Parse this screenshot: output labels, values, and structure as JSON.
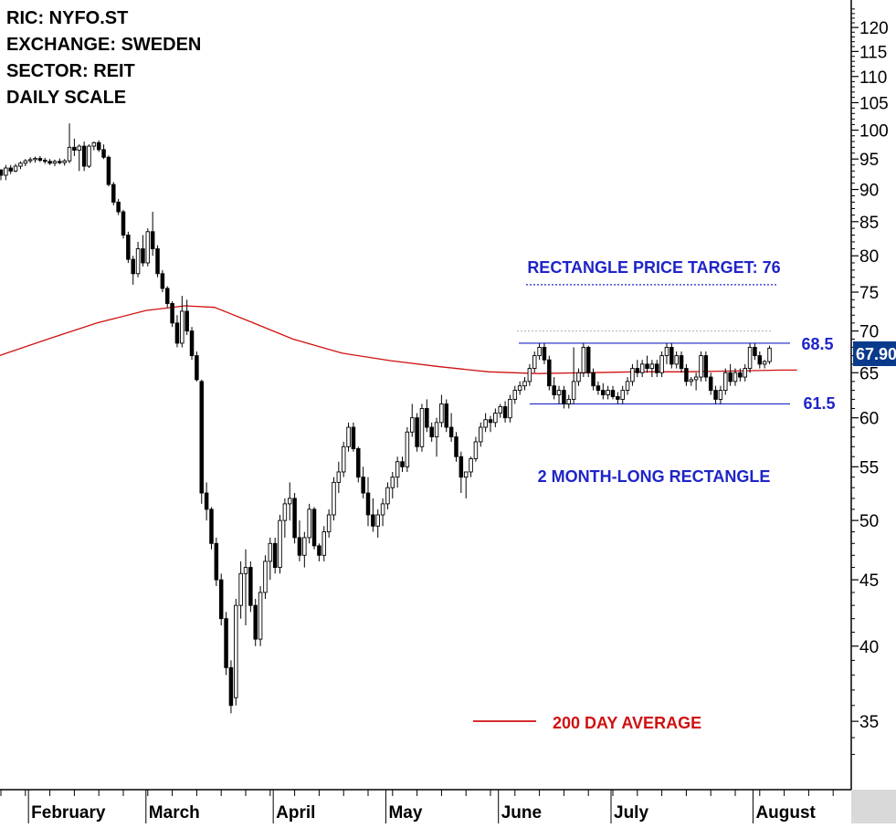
{
  "info": {
    "ric": "RIC: NYFO.ST",
    "exchange": "EXCHANGE: SWEDEN",
    "sector": "SECTOR: REIT",
    "scale": "DAILY SCALE"
  },
  "chart_data": {
    "type": "candlestick",
    "y_scale": "log",
    "ylim": [
      31,
      126
    ],
    "y_ticks": [
      35,
      40,
      45,
      50,
      55,
      60,
      65,
      70,
      75,
      80,
      85,
      90,
      95,
      100,
      105,
      110,
      115,
      120
    ],
    "x_month_labels": [
      "February",
      "March",
      "April",
      "May",
      "June",
      "July",
      "August"
    ],
    "last_price": "67.90",
    "annotations": {
      "target_label": "RECTANGLE PRICE TARGET: 76",
      "target_value": 76,
      "upper_label": "68.5",
      "upper_value": 68.5,
      "lower_label": "61.5",
      "lower_value": 61.5,
      "pattern_label": "2 MONTH-LONG RECTANGLE",
      "legend_ma": "200 DAY AVERAGE"
    },
    "colors": {
      "up": "#ffffff",
      "down": "#000000",
      "ma": "#d01010",
      "annotation": "#1f24c8",
      "last_price_bg": "#0a3a8c"
    },
    "ma200": [
      [
        0,
        67.0
      ],
      [
        10,
        69.0
      ],
      [
        20,
        71.0
      ],
      [
        30,
        72.6
      ],
      [
        38,
        73.2
      ],
      [
        44,
        73.0
      ],
      [
        50,
        71.5
      ],
      [
        60,
        69.0
      ],
      [
        70,
        67.3
      ],
      [
        80,
        66.4
      ],
      [
        90,
        65.7
      ],
      [
        100,
        65.1
      ],
      [
        110,
        64.9
      ],
      [
        120,
        65.0
      ],
      [
        130,
        65.1
      ],
      [
        140,
        65.1
      ],
      [
        150,
        65.2
      ],
      [
        160,
        65.3
      ],
      [
        163,
        65.3
      ]
    ],
    "ohlc": [
      [
        93.2,
        93.2,
        91.5,
        92.3
      ],
      [
        92.3,
        94.0,
        91.5,
        93.5
      ],
      [
        93.5,
        94.0,
        92.5,
        93.0
      ],
      [
        93.0,
        94.2,
        92.8,
        93.8
      ],
      [
        93.8,
        94.6,
        93.3,
        94.3
      ],
      [
        94.3,
        95.0,
        93.8,
        94.7
      ],
      [
        94.7,
        95.3,
        94.3,
        94.9
      ],
      [
        94.9,
        95.4,
        94.4,
        95.1
      ],
      [
        95.1,
        95.5,
        94.5,
        94.8
      ],
      [
        94.8,
        95.2,
        94.2,
        94.6
      ],
      [
        94.6,
        95.0,
        94.0,
        94.3
      ],
      [
        94.3,
        94.9,
        93.8,
        94.6
      ],
      [
        94.6,
        95.1,
        94.1,
        94.4
      ],
      [
        94.4,
        95.0,
        93.9,
        94.7
      ],
      [
        94.7,
        101.2,
        94.3,
        97.0
      ],
      [
        97.0,
        98.5,
        95.5,
        96.5
      ],
      [
        96.5,
        97.5,
        93.0,
        97.2
      ],
      [
        97.2,
        98.0,
        93.0,
        93.8
      ],
      [
        93.8,
        97.5,
        93.5,
        97.2
      ],
      [
        97.2,
        98.0,
        96.5,
        97.8
      ],
      [
        97.8,
        98.2,
        96.2,
        96.6
      ],
      [
        96.6,
        97.5,
        95.0,
        95.3
      ],
      [
        95.3,
        95.6,
        90.5,
        90.8
      ],
      [
        90.8,
        91.2,
        87.5,
        88.0
      ],
      [
        88.0,
        88.5,
        86.0,
        86.5
      ],
      [
        86.5,
        86.8,
        82.5,
        83.0
      ],
      [
        83.0,
        83.5,
        79.0,
        79.5
      ],
      [
        79.5,
        80.0,
        76.0,
        77.5
      ],
      [
        77.5,
        82.0,
        77.0,
        81.0
      ],
      [
        81.0,
        83.0,
        78.5,
        79.0
      ],
      [
        79.0,
        84.0,
        78.5,
        83.5
      ],
      [
        83.5,
        86.5,
        80.0,
        81.0
      ],
      [
        81.0,
        81.5,
        77.0,
        77.5
      ],
      [
        77.5,
        78.0,
        75.0,
        75.5
      ],
      [
        75.5,
        75.8,
        73.0,
        73.5
      ],
      [
        73.5,
        73.8,
        70.5,
        71.0
      ],
      [
        71.0,
        72.0,
        68.0,
        68.5
      ],
      [
        68.5,
        74.5,
        68.0,
        72.5
      ],
      [
        72.5,
        74.0,
        69.5,
        70.0
      ],
      [
        70.0,
        70.5,
        66.5,
        67.0
      ],
      [
        67.0,
        67.5,
        64.0,
        64.2
      ],
      [
        64.0,
        64.2,
        51.5,
        52.5
      ],
      [
        52.5,
        53.5,
        50.0,
        51.0
      ],
      [
        51.0,
        51.2,
        47.5,
        48.0
      ],
      [
        48.0,
        48.5,
        44.5,
        45.0
      ],
      [
        45.0,
        45.5,
        41.5,
        42.0
      ],
      [
        42.0,
        42.5,
        38.0,
        38.5
      ],
      [
        38.5,
        39.0,
        35.5,
        36.0
      ],
      [
        36.5,
        43.5,
        36.0,
        43.0
      ],
      [
        43.0,
        46.5,
        42.0,
        45.5
      ],
      [
        45.5,
        47.5,
        41.5,
        46.0
      ],
      [
        46.0,
        46.5,
        42.5,
        43.0
      ],
      [
        43.0,
        43.5,
        40.0,
        40.5
      ],
      [
        40.5,
        44.5,
        40.0,
        44.0
      ],
      [
        44.0,
        47.0,
        43.5,
        46.5
      ],
      [
        46.5,
        48.5,
        45.0,
        48.0
      ],
      [
        48.0,
        48.5,
        45.5,
        46.0
      ],
      [
        46.0,
        50.5,
        45.5,
        50.0
      ],
      [
        50.0,
        52.0,
        48.5,
        51.5
      ],
      [
        51.5,
        53.5,
        50.0,
        52.0
      ],
      [
        52.0,
        52.5,
        48.0,
        48.5
      ],
      [
        48.5,
        50.0,
        46.5,
        47.0
      ],
      [
        47.0,
        49.0,
        46.0,
        48.5
      ],
      [
        48.5,
        51.5,
        48.0,
        51.0
      ],
      [
        51.0,
        51.2,
        47.5,
        47.8
      ],
      [
        47.8,
        48.0,
        46.5,
        47.0
      ],
      [
        47.0,
        49.5,
        46.5,
        49.0
      ],
      [
        49.0,
        51.0,
        48.5,
        50.5
      ],
      [
        50.5,
        54.0,
        50.0,
        53.5
      ],
      [
        53.5,
        55.5,
        52.5,
        54.5
      ],
      [
        54.5,
        57.5,
        54.0,
        57.0
      ],
      [
        57.0,
        59.5,
        56.5,
        59.0
      ],
      [
        59.0,
        59.5,
        56.5,
        56.8
      ],
      [
        56.8,
        57.0,
        53.5,
        54.0
      ],
      [
        54.0,
        55.0,
        52.0,
        52.5
      ],
      [
        52.5,
        54.0,
        49.5,
        50.5
      ],
      [
        50.5,
        52.0,
        49.0,
        49.5
      ],
      [
        49.5,
        51.0,
        48.5,
        50.5
      ],
      [
        50.5,
        52.0,
        49.5,
        51.5
      ],
      [
        51.5,
        53.5,
        51.0,
        53.0
      ],
      [
        53.0,
        54.5,
        52.0,
        54.0
      ],
      [
        54.0,
        56.0,
        53.0,
        55.5
      ],
      [
        55.5,
        56.0,
        54.5,
        55.0
      ],
      [
        55.0,
        59.0,
        54.5,
        58.5
      ],
      [
        58.5,
        61.5,
        58.0,
        60.0
      ],
      [
        60.0,
        60.5,
        56.5,
        57.0
      ],
      [
        57.0,
        61.5,
        56.5,
        61.0
      ],
      [
        61.0,
        62.0,
        58.5,
        59.0
      ],
      [
        59.0,
        59.5,
        57.5,
        58.0
      ],
      [
        58.0,
        60.0,
        56.0,
        59.5
      ],
      [
        59.5,
        62.5,
        59.0,
        61.5
      ],
      [
        61.5,
        62.0,
        58.5,
        59.0
      ],
      [
        59.0,
        60.5,
        57.5,
        58.0
      ],
      [
        58.0,
        58.5,
        55.5,
        56.0
      ],
      [
        56.0,
        56.5,
        52.5,
        54.0
      ],
      [
        54.0,
        54.5,
        52.0,
        54.5
      ],
      [
        54.5,
        56.0,
        54.0,
        55.8
      ],
      [
        55.8,
        58.0,
        55.5,
        57.5
      ],
      [
        57.5,
        59.5,
        57.0,
        59.0
      ],
      [
        59.0,
        60.5,
        58.5,
        59.8
      ],
      [
        59.8,
        60.2,
        58.5,
        59.5
      ],
      [
        59.5,
        61.0,
        59.0,
        60.5
      ],
      [
        60.5,
        61.5,
        60.0,
        61.2
      ],
      [
        61.2,
        61.8,
        59.5,
        60.0
      ],
      [
        60.0,
        62.5,
        59.5,
        62.0
      ],
      [
        62.0,
        63.5,
        61.5,
        63.0
      ],
      [
        63.0,
        64.0,
        62.5,
        63.5
      ],
      [
        63.5,
        64.5,
        63.0,
        64.0
      ],
      [
        64.0,
        66.0,
        63.5,
        65.5
      ],
      [
        65.5,
        67.5,
        65.0,
        67.0
      ],
      [
        67.0,
        68.5,
        66.5,
        68.0
      ],
      [
        68.0,
        68.5,
        66.0,
        66.5
      ],
      [
        66.5,
        67.0,
        63.0,
        63.5
      ],
      [
        63.5,
        64.5,
        62.0,
        62.5
      ],
      [
        62.5,
        63.5,
        61.5,
        63.0
      ],
      [
        63.0,
        63.5,
        61.0,
        61.5
      ],
      [
        61.5,
        62.5,
        61.0,
        62.0
      ],
      [
        62.0,
        68.0,
        61.5,
        64.0
      ],
      [
        64.0,
        65.5,
        63.5,
        65.0
      ],
      [
        65.0,
        68.5,
        64.5,
        68.0
      ],
      [
        68.0,
        68.2,
        64.5,
        65.0
      ],
      [
        65.0,
        65.5,
        63.0,
        63.5
      ],
      [
        63.5,
        64.0,
        62.5,
        63.0
      ],
      [
        63.0,
        63.8,
        62.0,
        62.5
      ],
      [
        62.5,
        63.5,
        62.0,
        63.0
      ],
      [
        63.0,
        63.5,
        62.0,
        62.3
      ],
      [
        62.3,
        62.8,
        61.5,
        62.0
      ],
      [
        62.0,
        63.5,
        61.5,
        63.0
      ],
      [
        63.0,
        64.5,
        62.5,
        64.0
      ],
      [
        64.0,
        66.0,
        63.5,
        65.5
      ],
      [
        65.5,
        66.5,
        64.5,
        65.0
      ],
      [
        65.0,
        66.5,
        64.5,
        66.0
      ],
      [
        66.0,
        67.0,
        65.0,
        65.5
      ],
      [
        65.5,
        66.5,
        64.5,
        66.0
      ],
      [
        66.0,
        66.5,
        64.5,
        65.0
      ],
      [
        65.0,
        67.5,
        64.5,
        67.0
      ],
      [
        67.0,
        68.5,
        66.0,
        68.0
      ],
      [
        68.0,
        68.5,
        65.5,
        66.0
      ],
      [
        66.0,
        67.5,
        65.5,
        67.0
      ],
      [
        67.0,
        67.5,
        65.0,
        65.5
      ],
      [
        65.5,
        66.0,
        63.5,
        64.0
      ],
      [
        64.0,
        64.5,
        63.5,
        64.2
      ],
      [
        64.2,
        65.0,
        63.0,
        64.5
      ],
      [
        64.5,
        67.5,
        64.0,
        67.0
      ],
      [
        67.0,
        67.5,
        64.0,
        64.5
      ],
      [
        64.5,
        65.0,
        62.5,
        63.0
      ],
      [
        63.0,
        63.5,
        61.5,
        62.0
      ],
      [
        62.0,
        63.5,
        61.5,
        63.0
      ],
      [
        63.0,
        65.5,
        62.5,
        65.0
      ],
      [
        65.0,
        66.0,
        63.5,
        64.0
      ],
      [
        64.0,
        65.5,
        63.5,
        65.0
      ],
      [
        65.0,
        65.5,
        64.0,
        64.5
      ],
      [
        64.5,
        66.0,
        64.0,
        65.5
      ],
      [
        65.5,
        68.5,
        65.0,
        68.0
      ],
      [
        68.0,
        68.5,
        66.5,
        67.0
      ],
      [
        67.0,
        67.5,
        65.5,
        66.0
      ],
      [
        66.0,
        66.5,
        65.5,
        66.3
      ],
      [
        66.3,
        68.2,
        66.0,
        67.9
      ]
    ]
  }
}
